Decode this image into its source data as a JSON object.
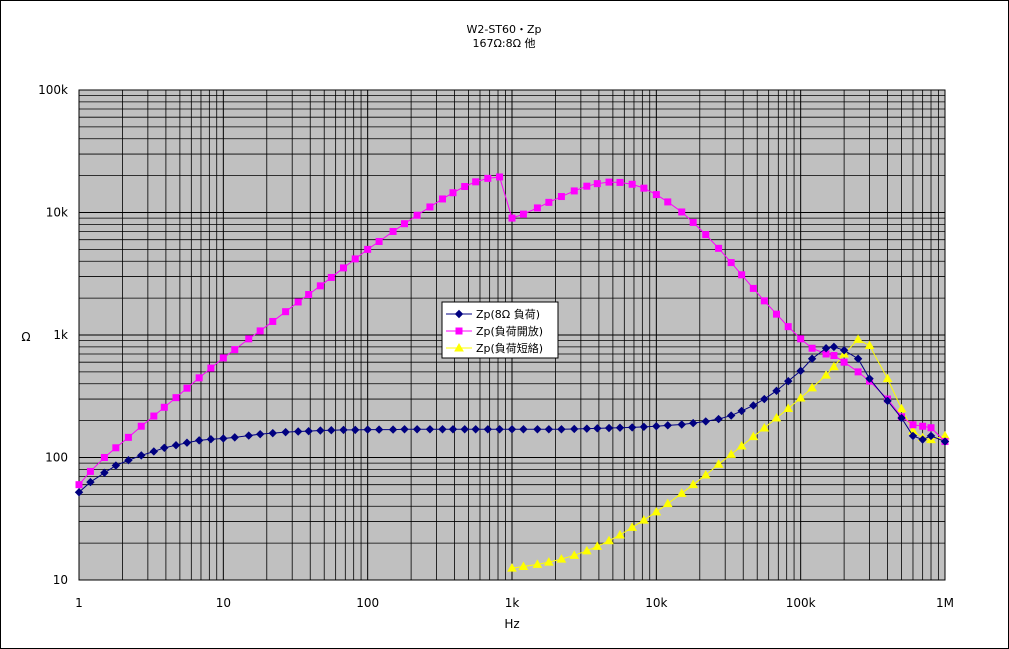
{
  "chart_data": {
    "type": "line",
    "title": "W2-ST60・Zp",
    "subtitle": "167Ω:8Ω 他",
    "xlabel": "Hz",
    "ylabel": "Ω",
    "x_scale": "log",
    "y_scale": "log",
    "xlim": [
      1,
      1000000
    ],
    "ylim": [
      10,
      100000
    ],
    "x_tick_labels": [
      "1",
      "10",
      "100",
      "1k",
      "10k",
      "100k",
      "1M"
    ],
    "y_tick_labels": [
      "10",
      "100",
      "1k",
      "10k",
      "100k"
    ],
    "grid": true,
    "legend_position": "center",
    "series": [
      {
        "name": "Zp(8Ω 負荷)",
        "color": "#000080",
        "marker": "diamond",
        "x": [
          1,
          1.2,
          1.5,
          1.8,
          2.2,
          2.7,
          3.3,
          3.9,
          4.7,
          5.6,
          6.8,
          8.2,
          10,
          12,
          15,
          18,
          22,
          27,
          33,
          39,
          47,
          56,
          68,
          82,
          100,
          120,
          150,
          180,
          220,
          270,
          330,
          390,
          470,
          560,
          680,
          820,
          1000,
          1200,
          1500,
          1800,
          2200,
          2700,
          3300,
          3900,
          4700,
          5600,
          6800,
          8200,
          10000,
          12000,
          15000,
          18000,
          22000,
          27000,
          33000,
          39000,
          47000,
          56000,
          68000,
          82000,
          100000,
          120000,
          150000,
          170000,
          200000,
          250000,
          300000,
          400000,
          500000,
          600000,
          700000,
          800000,
          1000000
        ],
        "values": [
          52,
          63,
          75,
          86,
          95,
          104,
          112,
          120,
          126,
          132,
          138,
          141,
          143,
          146,
          151,
          155,
          158,
          161,
          163,
          164,
          166,
          167,
          168,
          168,
          169,
          169,
          169,
          170,
          170,
          170,
          170,
          170,
          170,
          170,
          170,
          170,
          170,
          170,
          170,
          170,
          170,
          171,
          172,
          173,
          174,
          175,
          176,
          178,
          180,
          183,
          186,
          191,
          197,
          206,
          220,
          240,
          266,
          300,
          350,
          420,
          510,
          640,
          780,
          800,
          750,
          640,
          440,
          290,
          210,
          150,
          140,
          150,
          135
        ]
      },
      {
        "name": "Zp(負荷開放)",
        "color": "#FF00FF",
        "marker": "square",
        "x": [
          1,
          1.2,
          1.5,
          1.8,
          2.2,
          2.7,
          3.3,
          3.9,
          4.7,
          5.6,
          6.8,
          8.2,
          10,
          12,
          15,
          18,
          22,
          27,
          33,
          39,
          47,
          56,
          68,
          82,
          100,
          120,
          150,
          180,
          220,
          270,
          330,
          390,
          470,
          560,
          680,
          820,
          1000,
          1200,
          1500,
          1800,
          2200,
          2700,
          3300,
          3900,
          4700,
          5600,
          6800,
          8200,
          10000,
          12000,
          15000,
          18000,
          22000,
          27000,
          33000,
          39000,
          47000,
          56000,
          68000,
          82000,
          100000,
          120000,
          150000,
          170000,
          200000,
          250000,
          300000,
          400000,
          500000,
          600000,
          700000,
          800000,
          1000000
        ],
        "values": [
          60,
          77,
          100,
          120,
          146,
          180,
          218,
          257,
          308,
          368,
          447,
          537,
          650,
          760,
          930,
          1080,
          1290,
          1550,
          1860,
          2140,
          2520,
          2950,
          3530,
          4180,
          5000,
          5800,
          7000,
          8100,
          9500,
          11100,
          12900,
          14500,
          16300,
          17800,
          19000,
          19500,
          9000,
          9700,
          10900,
          12100,
          13500,
          15000,
          16400,
          17200,
          17700,
          17600,
          17000,
          15800,
          14000,
          12200,
          10100,
          8300,
          6600,
          5100,
          3900,
          3100,
          2400,
          1900,
          1480,
          1170,
          930,
          780,
          700,
          680,
          600,
          500,
          420,
          300,
          215,
          185,
          180,
          175,
          135
        ]
      },
      {
        "name": "Zp(負荷短絡)",
        "color": "#FFFF00",
        "marker": "triangle",
        "x": [
          1000,
          1200,
          1500,
          1800,
          2200,
          2700,
          3300,
          3900,
          4700,
          5600,
          6800,
          8200,
          10000,
          12000,
          15000,
          18000,
          22000,
          27000,
          33000,
          39000,
          47000,
          56000,
          68000,
          82000,
          100000,
          120000,
          150000,
          170000,
          200000,
          250000,
          300000,
          400000,
          500000,
          600000,
          700000,
          800000,
          1000000
        ],
        "values": [
          12.5,
          12.9,
          13.4,
          14,
          14.8,
          15.9,
          17.3,
          18.8,
          20.9,
          23.3,
          26.9,
          30.8,
          36,
          42,
          51,
          60,
          72,
          88,
          106,
          124,
          148,
          174,
          210,
          251,
          306,
          370,
          470,
          550,
          700,
          920,
          820,
          440,
          250,
          165,
          145,
          140,
          150
        ]
      }
    ]
  }
}
